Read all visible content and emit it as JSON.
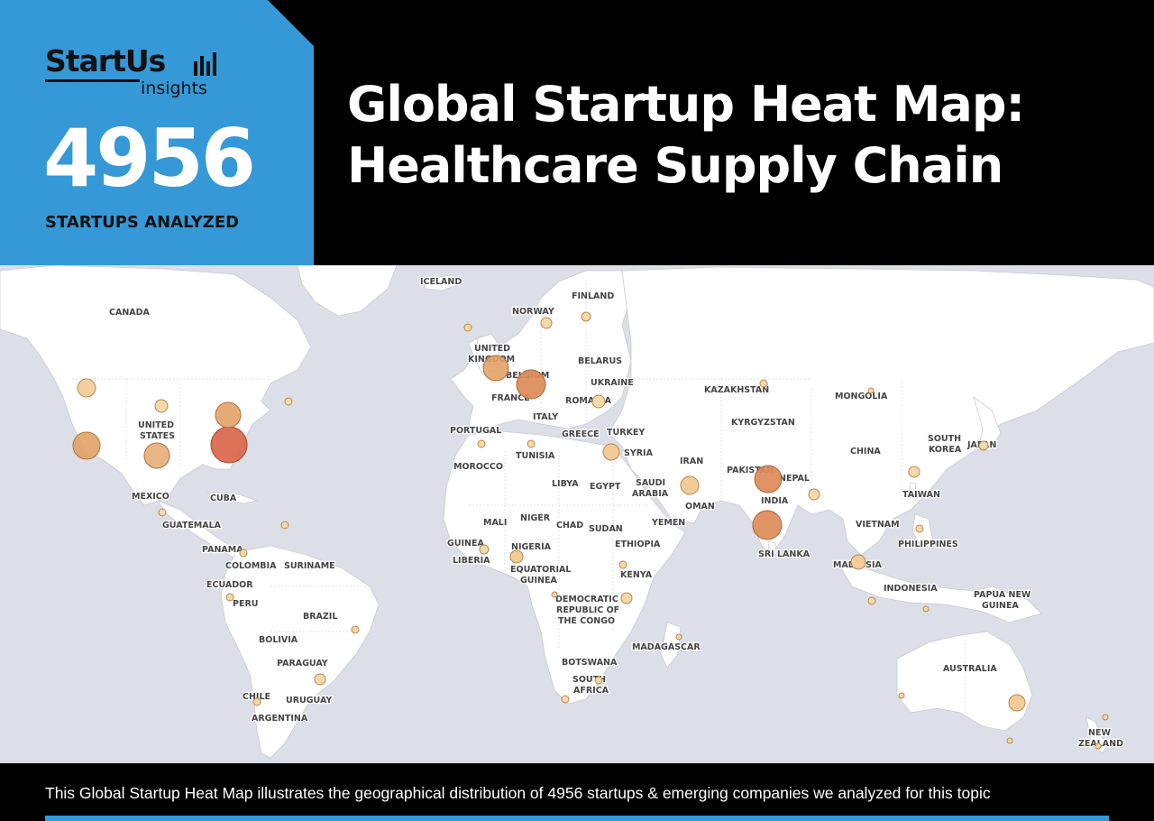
{
  "brand": {
    "name": "StartUs",
    "sub": "insights"
  },
  "header": {
    "count": "4956",
    "count_label": "STARTUPS ANALYZED",
    "title_line1": "Global Startup Heat Map:",
    "title_line2": "Healthcare Supply Chain"
  },
  "footer": {
    "text": "This Global Startup Heat Map illustrates the geographical distribution of 4956 startups & emerging companies we analyzed for this topic"
  },
  "colors": {
    "accent": "#3599d8",
    "bubble_low": "#f6d9a8",
    "bubble_mid": "#e2a267",
    "bubble_high": "#d9674a"
  },
  "map": {
    "labels": [
      "ICELAND",
      "FINLAND",
      "NORWAY",
      "CANADA",
      "UNITED KINGDOM",
      "BELARUS",
      "UKRAINE",
      "BELGIUM",
      "FRANCE",
      "ROMANIA",
      "KAZAKHSTAN",
      "MONGOLIA",
      "UNITED STATES",
      "ITALY",
      "KYRGYZSTAN",
      "PORTUGAL",
      "GREECE",
      "TURKEY",
      "TUNISIA",
      "SYRIA",
      "CHINA",
      "SOUTH KOREA",
      "JAPAN",
      "MOROCCO",
      "IRAN",
      "PAKISTAN",
      "NEPAL",
      "LIBYA",
      "EGYPT",
      "SAUDI ARABIA",
      "INDIA",
      "MEXICO",
      "CUBA",
      "OMAN",
      "TAIWAN",
      "GUATEMALA",
      "MALI",
      "NIGER",
      "CHAD",
      "SUDAN",
      "YEMEN",
      "VIETNAM",
      "PANAMA",
      "GUINEA",
      "NIGERIA",
      "ETHIOPIA",
      "SRI LANKA",
      "PHILIPPINES",
      "COLOMBIA",
      "SURINAME",
      "LIBERIA",
      "EQUATORIAL GUINEA",
      "MALAYSIA",
      "ECUADOR",
      "KENYA",
      "INDONESIA",
      "PAPUA NEW GUINEA",
      "PERU",
      "DEMOCRATIC REPUBLIC OF THE CONGO",
      "BRAZIL",
      "BOLIVIA",
      "MADAGASCAR",
      "PARAGUAY",
      "BOTSWANA",
      "AUSTRALIA",
      "SOUTH AFRICA",
      "CHILE",
      "URUGUAY",
      "ARGENTINA",
      "NEW ZEALAND"
    ],
    "bubbles": [
      {
        "place": "United States (East Coast)",
        "level": "high"
      },
      {
        "place": "United States (Northeast)",
        "level": "mid"
      },
      {
        "place": "United States (California)",
        "level": "mid"
      },
      {
        "place": "United States (Texas)",
        "level": "mid"
      },
      {
        "place": "United States (Northwest)",
        "level": "mid-low"
      },
      {
        "place": "United States (Midwest)",
        "level": "low"
      },
      {
        "place": "Canada (Atlantic)",
        "level": "low"
      },
      {
        "place": "United Kingdom",
        "level": "mid"
      },
      {
        "place": "Germany",
        "level": "mid"
      },
      {
        "place": "India (North)",
        "level": "mid"
      },
      {
        "place": "India (South)",
        "level": "mid"
      },
      {
        "place": "Turkey",
        "level": "mid-low"
      },
      {
        "place": "UAE",
        "level": "mid-low"
      },
      {
        "place": "Singapore",
        "level": "mid-low"
      },
      {
        "place": "Australia (Southeast)",
        "level": "mid-low"
      },
      {
        "place": "Nigeria",
        "level": "mid-low"
      },
      {
        "place": "Kenya",
        "level": "mid-low"
      }
    ]
  }
}
